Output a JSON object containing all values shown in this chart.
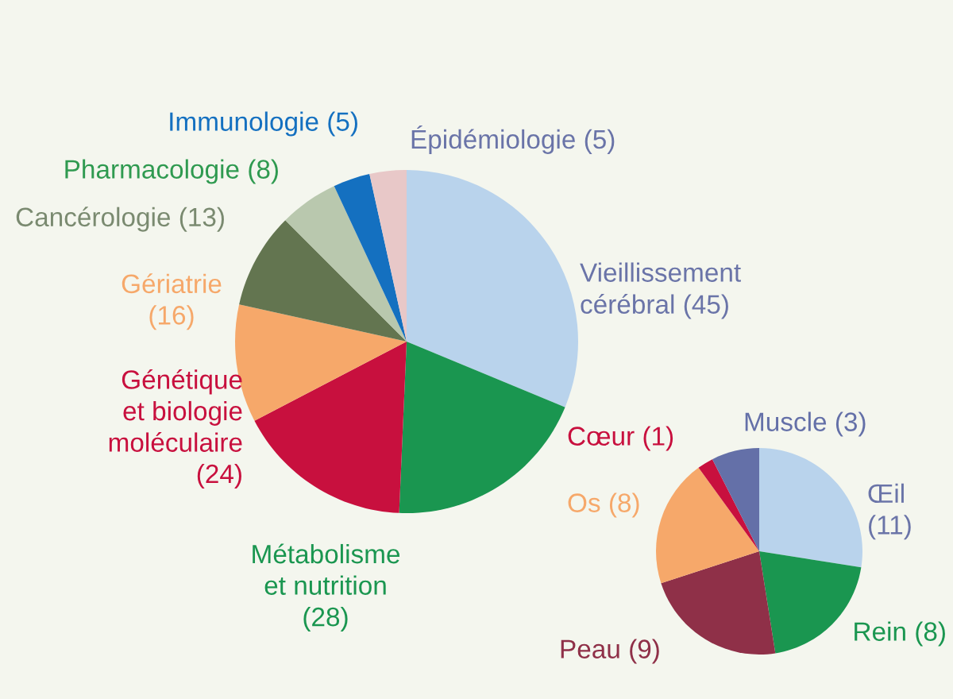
{
  "chart_data": [
    {
      "type": "pie",
      "categories": [
        "Vieillissement\ncérébral",
        "Métabolisme\net nutrition",
        "Génétique\net biologie\nmoléculaire",
        "Gériatrie",
        "Cancérologie",
        "Pharmacologie",
        "Immunologie",
        "Épidémiologie"
      ],
      "values": [
        45,
        28,
        24,
        16,
        13,
        8,
        5,
        5
      ],
      "value_labels": [
        "(45)",
        "(28)",
        "(24)",
        "(16)",
        "(13)",
        "(8)",
        "(5)",
        "(5)"
      ],
      "colors": [
        "#b9d3ec",
        "#1a9650",
        "#c8103e",
        "#f6a86a",
        "#637550",
        "#b9c8ae",
        "#1470c0",
        "#e8c8c8"
      ]
    },
    {
      "type": "pie",
      "categories": [
        "Œil",
        "Rein",
        "Peau",
        "Os",
        "Cœur",
        "Muscle"
      ],
      "values": [
        11,
        8,
        9,
        8,
        1,
        3
      ],
      "value_labels": [
        "(11)",
        "(8)",
        "(9)",
        "(8)",
        "(1)",
        "(3)"
      ],
      "colors": [
        "#b9d3ec",
        "#1a9650",
        "#8f3048",
        "#f6a86a",
        "#c8103e",
        "#6470a8"
      ]
    }
  ]
}
